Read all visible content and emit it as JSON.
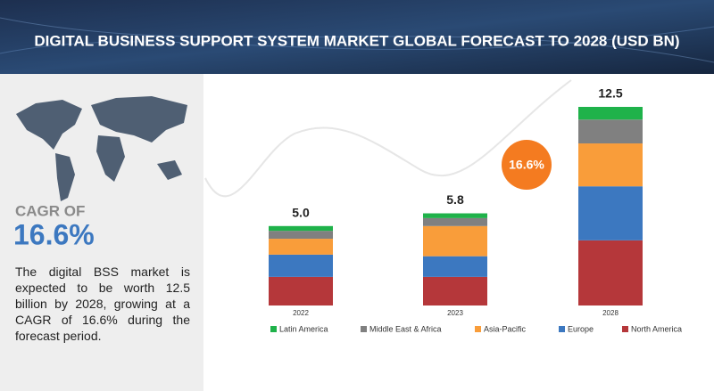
{
  "chart_data": {
    "type": "stacked_bar",
    "title": "DIGITAL BUSINESS SUPPORT SYSTEM MARKET GLOBAL FORECAST TO 2028 (USD BN)",
    "categories": [
      "2022",
      "2023",
      "2028"
    ],
    "series": [
      {
        "name": "North America",
        "color": "#b5373a",
        "values": [
          1.8,
          1.8,
          4.1
        ]
      },
      {
        "name": "Europe",
        "color": "#3c78c0",
        "values": [
          1.4,
          1.3,
          3.4
        ]
      },
      {
        "name": "Asia-Pacific",
        "color": "#f99d3a",
        "values": [
          1.0,
          1.9,
          2.7
        ]
      },
      {
        "name": "Middle East & Africa",
        "color": "#808080",
        "values": [
          0.5,
          0.5,
          1.5
        ]
      },
      {
        "name": "Latin America",
        "color": "#1fb24a",
        "values": [
          0.3,
          0.3,
          0.8
        ]
      }
    ],
    "totals": {
      "values": [
        5.0,
        5.8,
        12.5
      ],
      "value_labels": [
        "5.0",
        "5.8",
        "12.5"
      ]
    },
    "ylim": [
      0,
      12.5
    ],
    "cagr_bubble": "16.6%",
    "legend_order": [
      4,
      3,
      2,
      1,
      0
    ]
  },
  "side_panel": {
    "cagr_heading": "CAGR OF",
    "cagr_value": "16.6%",
    "text": "The digital BSS market is expected to be worth 12.5 billion by 2028, growing at a CAGR of 16.6% during the forecast period."
  }
}
